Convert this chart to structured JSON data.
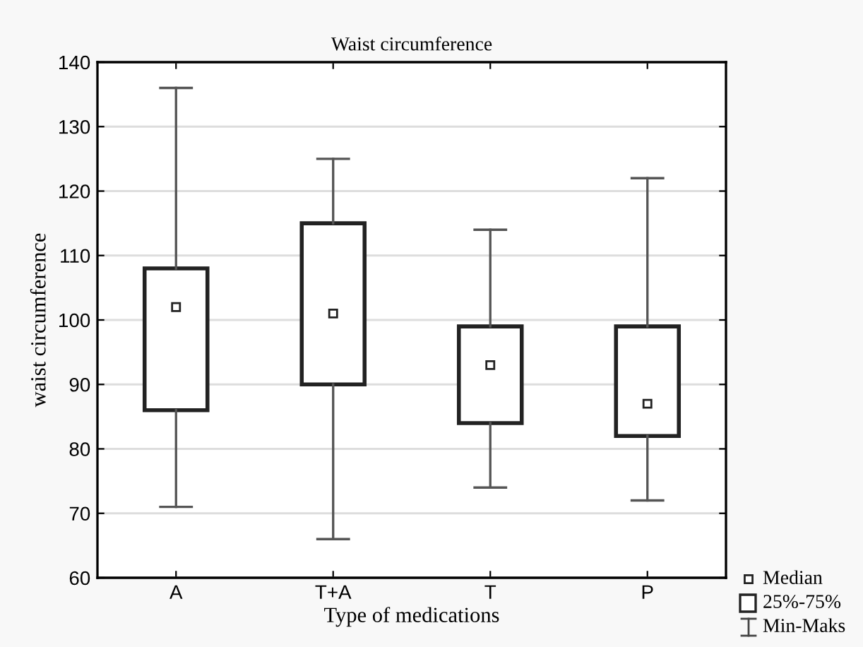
{
  "chart_data": {
    "type": "box",
    "title": "Waist circumference",
    "xlabel": "Type of medications",
    "ylabel": "waist circumference",
    "categories": [
      "A",
      "T+A",
      "T",
      "P"
    ],
    "boxes": [
      {
        "low": 71,
        "q1": 86,
        "median": 102,
        "q3": 108,
        "high": 136
      },
      {
        "low": 66,
        "q1": 90,
        "median": 101,
        "q3": 115,
        "high": 125
      },
      {
        "low": 74,
        "q1": 84,
        "median": 93,
        "q3": 99,
        "high": 114
      },
      {
        "low": 72,
        "q1": 82,
        "median": 87,
        "q3": 99,
        "high": 122
      }
    ],
    "ylim": [
      60,
      140
    ],
    "yticks": [
      60,
      70,
      80,
      90,
      100,
      110,
      120,
      130,
      140
    ],
    "grid": "y",
    "annotations": [
      "Median",
      "25%-75%",
      "Min-Maks"
    ]
  }
}
